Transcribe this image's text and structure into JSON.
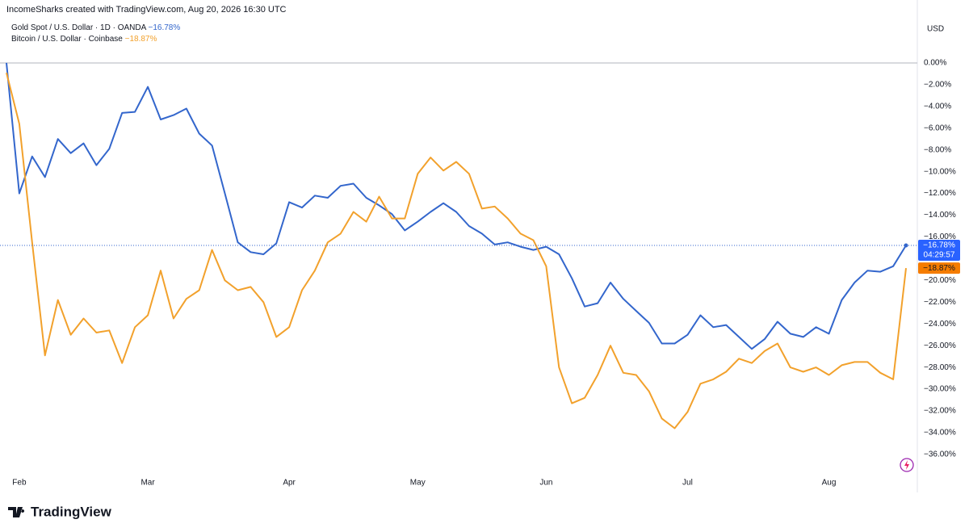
{
  "chart_data": {
    "type": "line",
    "header": "IncomeSharks created with TradingView.com, Aug 20, 2026 16:30 UTC",
    "currency": "USD",
    "brand": "TradingView",
    "countdown": "04:29:57",
    "categories": [
      null,
      "Feb",
      null,
      null,
      null,
      null,
      null,
      null,
      null,
      null,
      null,
      "Mar",
      null,
      null,
      null,
      null,
      null,
      null,
      null,
      null,
      null,
      null,
      "Apr",
      null,
      null,
      null,
      null,
      null,
      null,
      null,
      null,
      null,
      "May",
      null,
      null,
      null,
      null,
      null,
      null,
      null,
      null,
      null,
      "Jun",
      null,
      null,
      null,
      null,
      null,
      null,
      null,
      null,
      null,
      null,
      "Jul",
      null,
      null,
      null,
      null,
      null,
      null,
      null,
      null,
      null,
      null,
      "Aug",
      null,
      null,
      null,
      null,
      null,
      null
    ],
    "series": [
      {
        "name": "Gold Spot / U.S. Dollar · 1D · OANDA",
        "color": "#3366cc",
        "label_color": "#2962ff",
        "last_value_label": "−16.78%",
        "values": [
          0,
          -12.0,
          -8.6,
          -10.5,
          -7.0,
          -8.3,
          -7.4,
          -9.4,
          -7.9,
          -4.6,
          -4.5,
          -2.2,
          -5.2,
          -4.8,
          -4.2,
          -6.5,
          -7.6,
          -12.0,
          -16.5,
          -17.4,
          -17.6,
          -16.6,
          -12.8,
          -13.3,
          -12.2,
          -12.4,
          -11.3,
          -11.1,
          -12.4,
          -13.1,
          -13.9,
          -15.4,
          -14.6,
          -13.7,
          -12.9,
          -13.7,
          -15.0,
          -15.7,
          -16.7,
          -16.5,
          -16.9,
          -17.2,
          -16.9,
          -17.6,
          -19.8,
          -22.4,
          -22.1,
          -20.2,
          -21.7,
          -22.8,
          -23.9,
          -25.8,
          -25.8,
          -25.0,
          -23.2,
          -24.3,
          -24.1,
          -25.2,
          -26.3,
          -25.4,
          -23.8,
          -24.9,
          -25.2,
          -24.3,
          -24.9,
          -21.8,
          -20.2,
          -19.1,
          -19.2,
          -18.7,
          -16.78
        ]
      },
      {
        "name": "Bitcoin / U.S. Dollar · Coinbase",
        "color": "#f2a12c",
        "label_color": "#f57c00",
        "last_value_label": "−18.87%",
        "values": [
          -0.9,
          -5.6,
          -16.5,
          -26.9,
          -21.8,
          -25.0,
          -23.5,
          -24.8,
          -24.6,
          -27.6,
          -24.3,
          -23.2,
          -19.1,
          -23.5,
          -21.7,
          -20.9,
          -17.2,
          -20.0,
          -20.9,
          -20.6,
          -22.0,
          -25.2,
          -24.3,
          -20.9,
          -19.1,
          -16.5,
          -15.7,
          -13.7,
          -14.6,
          -12.3,
          -14.3,
          -14.3,
          -10.2,
          -8.7,
          -9.9,
          -9.1,
          -10.2,
          -13.4,
          -13.2,
          -14.3,
          -15.7,
          -16.3,
          -18.7,
          -28.0,
          -31.3,
          -30.8,
          -28.7,
          -26.0,
          -28.5,
          -28.7,
          -30.2,
          -32.7,
          -33.6,
          -32.1,
          -29.5,
          -29.1,
          -28.4,
          -27.2,
          -27.6,
          -26.5,
          -25.8,
          -28.0,
          -28.4,
          -28.0,
          -28.7,
          -27.8,
          -27.5,
          -27.5,
          -28.5,
          -29.1,
          -18.87
        ]
      }
    ],
    "ylim": [
      -37.42,
      4.45
    ],
    "yticks": [
      {
        "value": 0,
        "label": "0.00%"
      },
      {
        "value": -2,
        "label": "−2.00%"
      },
      {
        "value": -4,
        "label": "−4.00%"
      },
      {
        "value": -6,
        "label": "−6.00%"
      },
      {
        "value": -8,
        "label": "−8.00%"
      },
      {
        "value": -10,
        "label": "−10.00%"
      },
      {
        "value": -12,
        "label": "−12.00%"
      },
      {
        "value": -14,
        "label": "−14.00%"
      },
      {
        "value": -16,
        "label": "−16.00%"
      },
      {
        "value": -18,
        "label": "−18.00%"
      },
      {
        "value": -20,
        "label": "−20.00%"
      },
      {
        "value": -22,
        "label": "−22.00%"
      },
      {
        "value": -24,
        "label": "−24.00%"
      },
      {
        "value": -26,
        "label": "−26.00%"
      },
      {
        "value": -28,
        "label": "−28.00%"
      },
      {
        "value": -30,
        "label": "−30.00%"
      },
      {
        "value": -32,
        "label": "−32.00%"
      },
      {
        "value": -34,
        "label": "−34.00%"
      },
      {
        "value": -36,
        "label": "−36.00%"
      }
    ],
    "grid": false
  }
}
